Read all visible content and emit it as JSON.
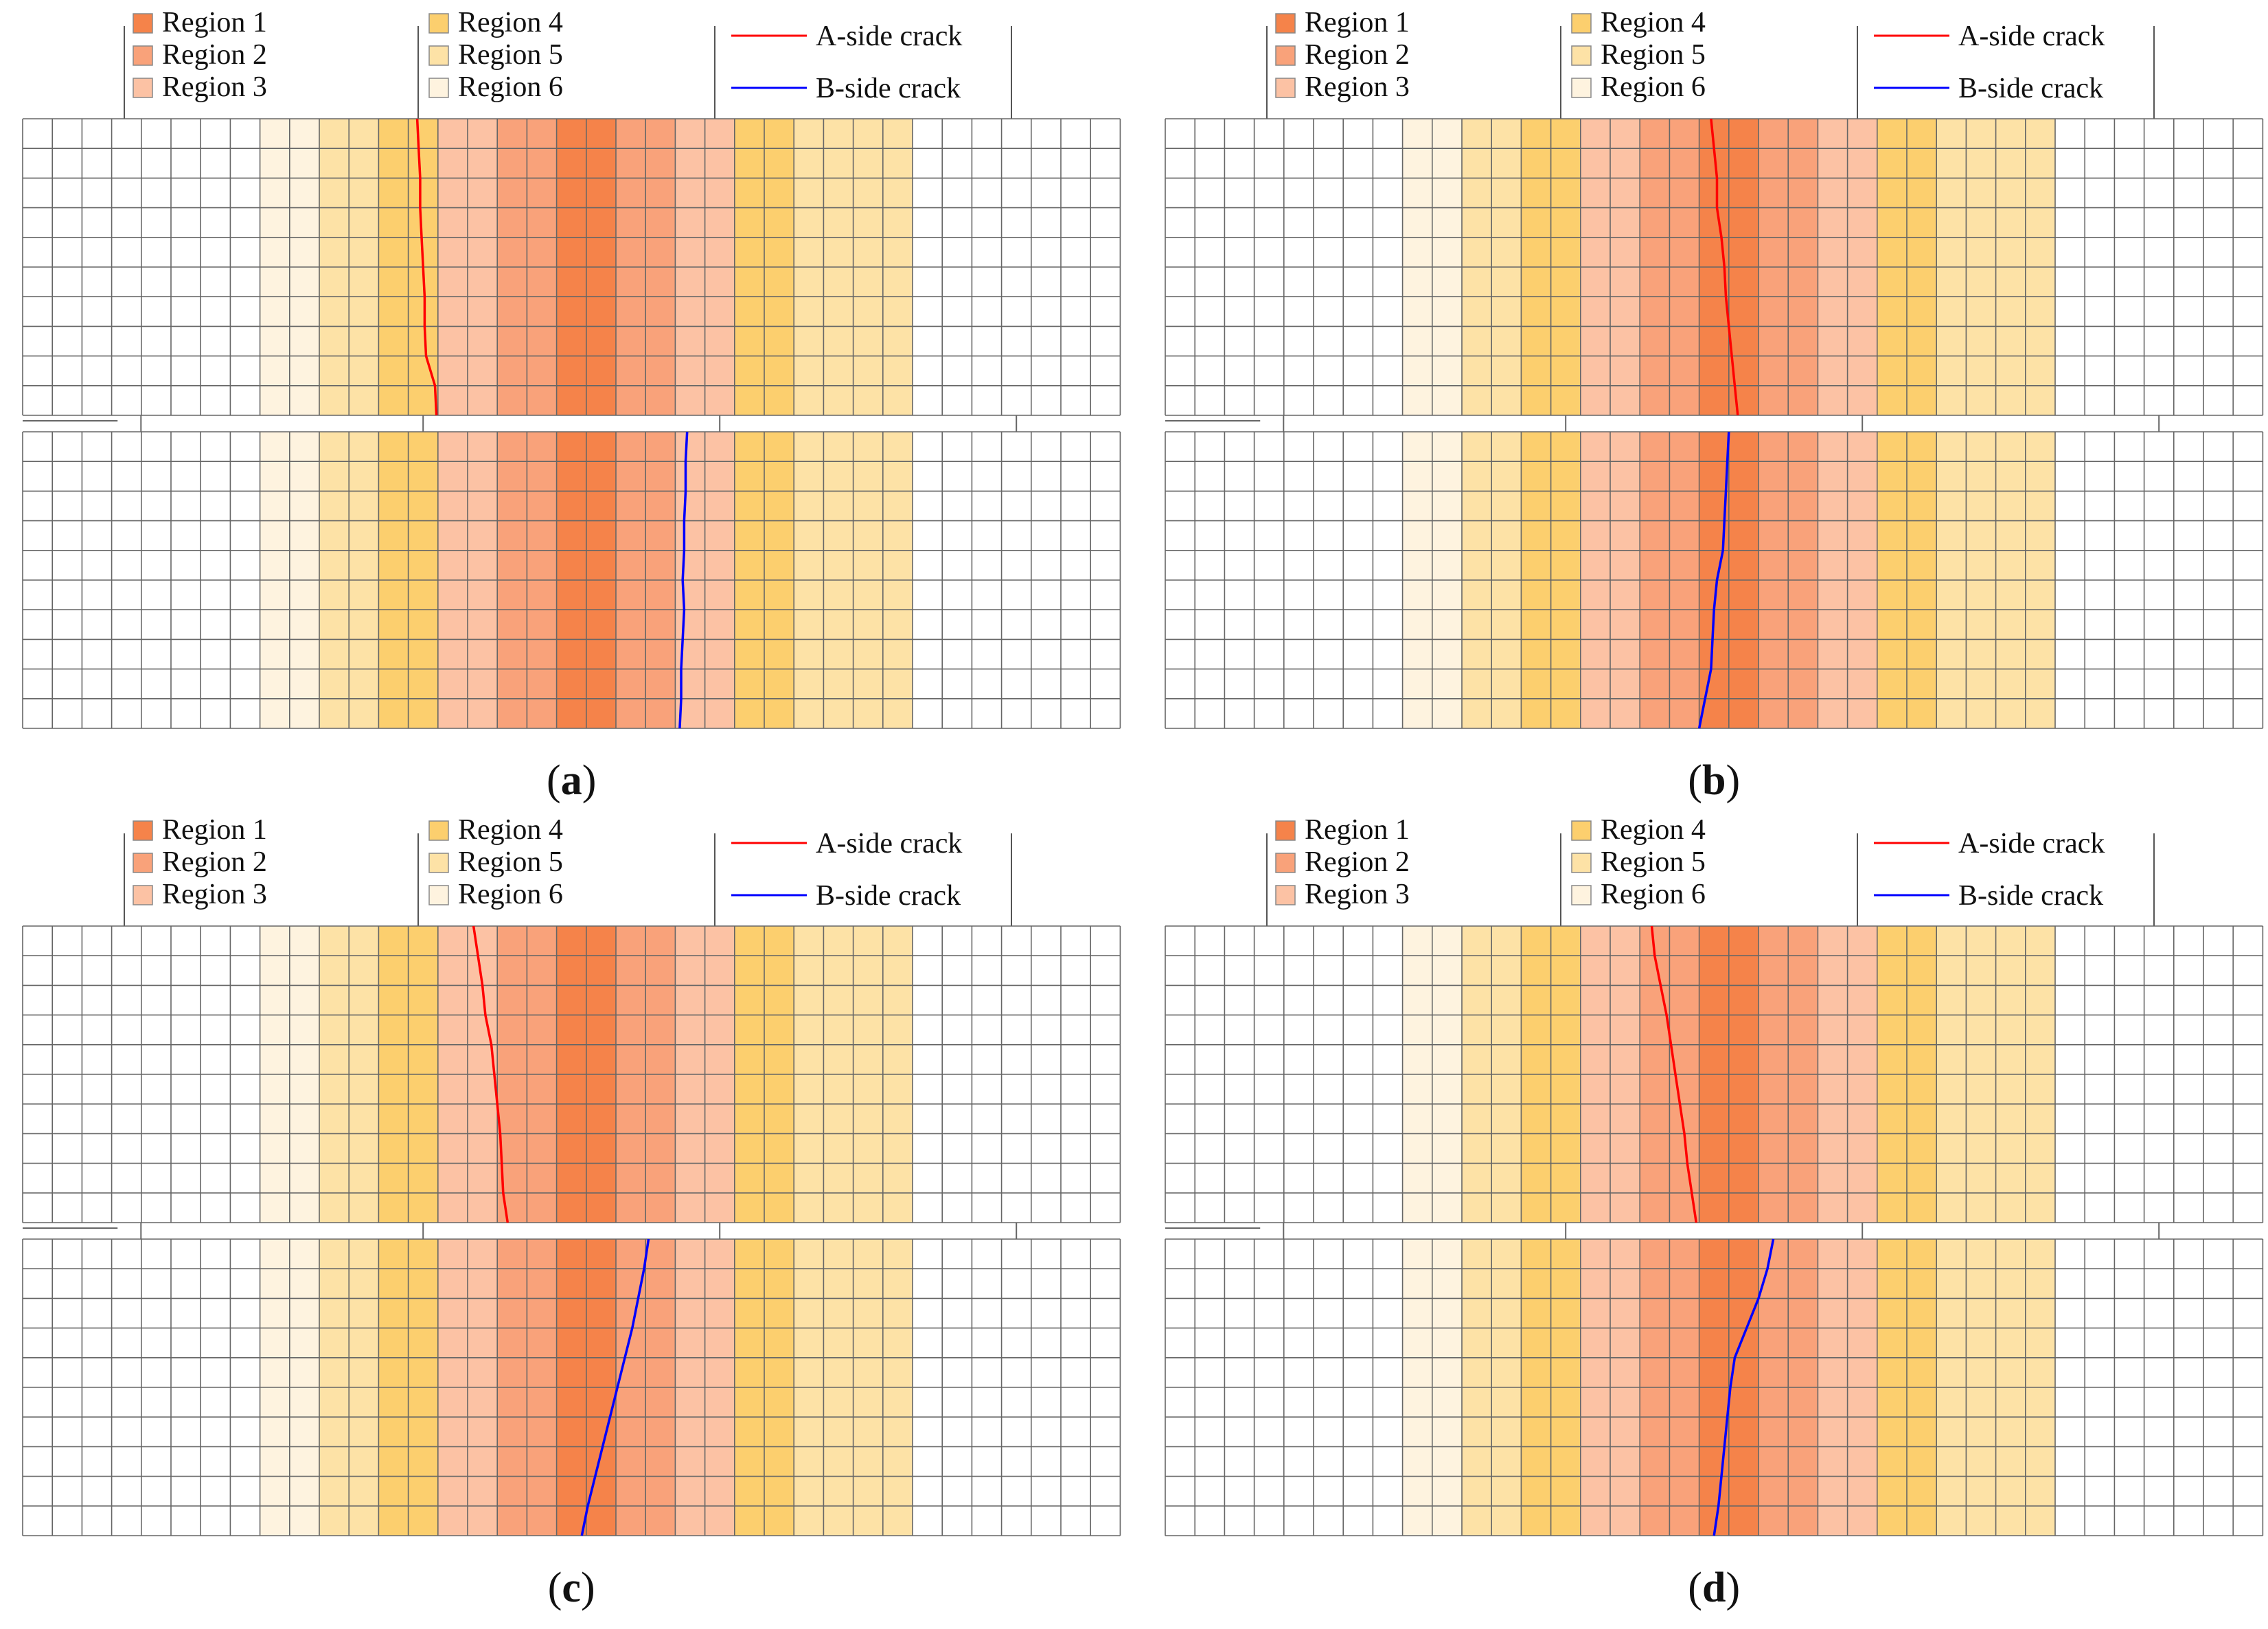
{
  "legend": {
    "regions": [
      {
        "label": "Region 1",
        "color": "#F5834A"
      },
      {
        "label": "Region 2",
        "color": "#F9A27A"
      },
      {
        "label": "Region 3",
        "color": "#FCC2A4"
      },
      {
        "label": "Region 4",
        "color": "#FCCF6E"
      },
      {
        "label": "Region 5",
        "color": "#FDE2A6"
      },
      {
        "label": "Region 6",
        "color": "#FEF3DF"
      }
    ],
    "cracks": [
      {
        "label": "A-side crack",
        "color": "#FF0000"
      },
      {
        "label": "B-side crack",
        "color": "#0000FF"
      }
    ]
  },
  "grid": {
    "columns": 37,
    "rows": 10
  },
  "panels": [
    {
      "label_prefix": "(",
      "label_letter": "a",
      "label_suffix": ")",
      "column_regions": [
        0,
        0,
        0,
        0,
        0,
        0,
        0,
        0,
        6,
        6,
        5,
        5,
        4,
        4,
        3,
        3,
        2,
        2,
        1,
        1,
        2,
        2,
        3,
        3,
        4,
        4,
        5,
        5,
        5,
        5,
        0,
        0,
        0,
        0,
        0,
        0,
        0
      ],
      "a_crack": [
        [
          13.3,
          0
        ],
        [
          13.35,
          1
        ],
        [
          13.4,
          2
        ],
        [
          13.4,
          3
        ],
        [
          13.45,
          4
        ],
        [
          13.5,
          5
        ],
        [
          13.55,
          6
        ],
        [
          13.55,
          7
        ],
        [
          13.6,
          8
        ],
        [
          13.9,
          9
        ],
        [
          13.95,
          10
        ]
      ],
      "b_crack": [
        [
          22.4,
          0
        ],
        [
          22.35,
          1
        ],
        [
          22.35,
          2
        ],
        [
          22.3,
          3
        ],
        [
          22.3,
          4
        ],
        [
          22.25,
          5
        ],
        [
          22.3,
          6
        ],
        [
          22.25,
          7
        ],
        [
          22.2,
          8
        ],
        [
          22.2,
          9
        ],
        [
          22.15,
          10
        ]
      ]
    },
    {
      "label_prefix": "(",
      "label_letter": "b",
      "label_suffix": ")",
      "column_regions": [
        0,
        0,
        0,
        0,
        0,
        0,
        0,
        0,
        6,
        6,
        5,
        5,
        4,
        4,
        3,
        3,
        2,
        2,
        1,
        1,
        2,
        2,
        3,
        3,
        4,
        4,
        5,
        5,
        5,
        5,
        0,
        0,
        0,
        0,
        0,
        0,
        0
      ],
      "a_crack": [
        [
          18.4,
          0
        ],
        [
          18.5,
          1
        ],
        [
          18.6,
          2
        ],
        [
          18.6,
          3
        ],
        [
          18.75,
          4
        ],
        [
          18.85,
          5
        ],
        [
          18.9,
          6
        ],
        [
          19.0,
          7
        ],
        [
          19.1,
          8
        ],
        [
          19.2,
          9
        ],
        [
          19.3,
          10
        ]
      ],
      "b_crack": [
        [
          19.0,
          0
        ],
        [
          18.95,
          1
        ],
        [
          18.9,
          2
        ],
        [
          18.85,
          3
        ],
        [
          18.8,
          4
        ],
        [
          18.6,
          5
        ],
        [
          18.5,
          6
        ],
        [
          18.45,
          7
        ],
        [
          18.4,
          8
        ],
        [
          18.2,
          9
        ],
        [
          18.0,
          10
        ]
      ]
    },
    {
      "label_prefix": "(",
      "label_letter": "c",
      "label_suffix": ")",
      "column_regions": [
        0,
        0,
        0,
        0,
        0,
        0,
        0,
        0,
        6,
        6,
        5,
        5,
        4,
        4,
        3,
        3,
        2,
        2,
        1,
        1,
        2,
        2,
        3,
        3,
        4,
        4,
        5,
        5,
        5,
        5,
        0,
        0,
        0,
        0,
        0,
        0,
        0
      ],
      "a_crack": [
        [
          15.2,
          0
        ],
        [
          15.35,
          1
        ],
        [
          15.5,
          2
        ],
        [
          15.6,
          3
        ],
        [
          15.8,
          4
        ],
        [
          15.9,
          5
        ],
        [
          16.0,
          6
        ],
        [
          16.1,
          7
        ],
        [
          16.15,
          8
        ],
        [
          16.2,
          9
        ],
        [
          16.35,
          10
        ]
      ],
      "b_crack": [
        [
          21.1,
          0
        ],
        [
          20.95,
          1
        ],
        [
          20.75,
          2
        ],
        [
          20.55,
          3
        ],
        [
          20.3,
          4
        ],
        [
          20.05,
          5
        ],
        [
          19.8,
          6
        ],
        [
          19.55,
          7
        ],
        [
          19.3,
          8
        ],
        [
          19.05,
          9
        ],
        [
          18.85,
          10
        ]
      ]
    },
    {
      "label_prefix": "(",
      "label_letter": "d",
      "label_suffix": ")",
      "column_regions": [
        0,
        0,
        0,
        0,
        0,
        0,
        0,
        0,
        6,
        6,
        5,
        5,
        4,
        4,
        3,
        3,
        2,
        2,
        1,
        1,
        2,
        2,
        3,
        3,
        4,
        4,
        5,
        5,
        5,
        5,
        0,
        0,
        0,
        0,
        0,
        0,
        0
      ],
      "a_crack": [
        [
          16.4,
          0
        ],
        [
          16.5,
          1
        ],
        [
          16.7,
          2
        ],
        [
          16.9,
          3
        ],
        [
          17.05,
          4
        ],
        [
          17.2,
          5
        ],
        [
          17.35,
          6
        ],
        [
          17.5,
          7
        ],
        [
          17.6,
          8
        ],
        [
          17.75,
          9
        ],
        [
          17.9,
          10
        ]
      ],
      "b_crack": [
        [
          20.5,
          0
        ],
        [
          20.3,
          1
        ],
        [
          20.0,
          2
        ],
        [
          19.6,
          3
        ],
        [
          19.2,
          4
        ],
        [
          19.05,
          5
        ],
        [
          18.95,
          6
        ],
        [
          18.85,
          7
        ],
        [
          18.75,
          8
        ],
        [
          18.65,
          9
        ],
        [
          18.5,
          10
        ]
      ]
    }
  ]
}
